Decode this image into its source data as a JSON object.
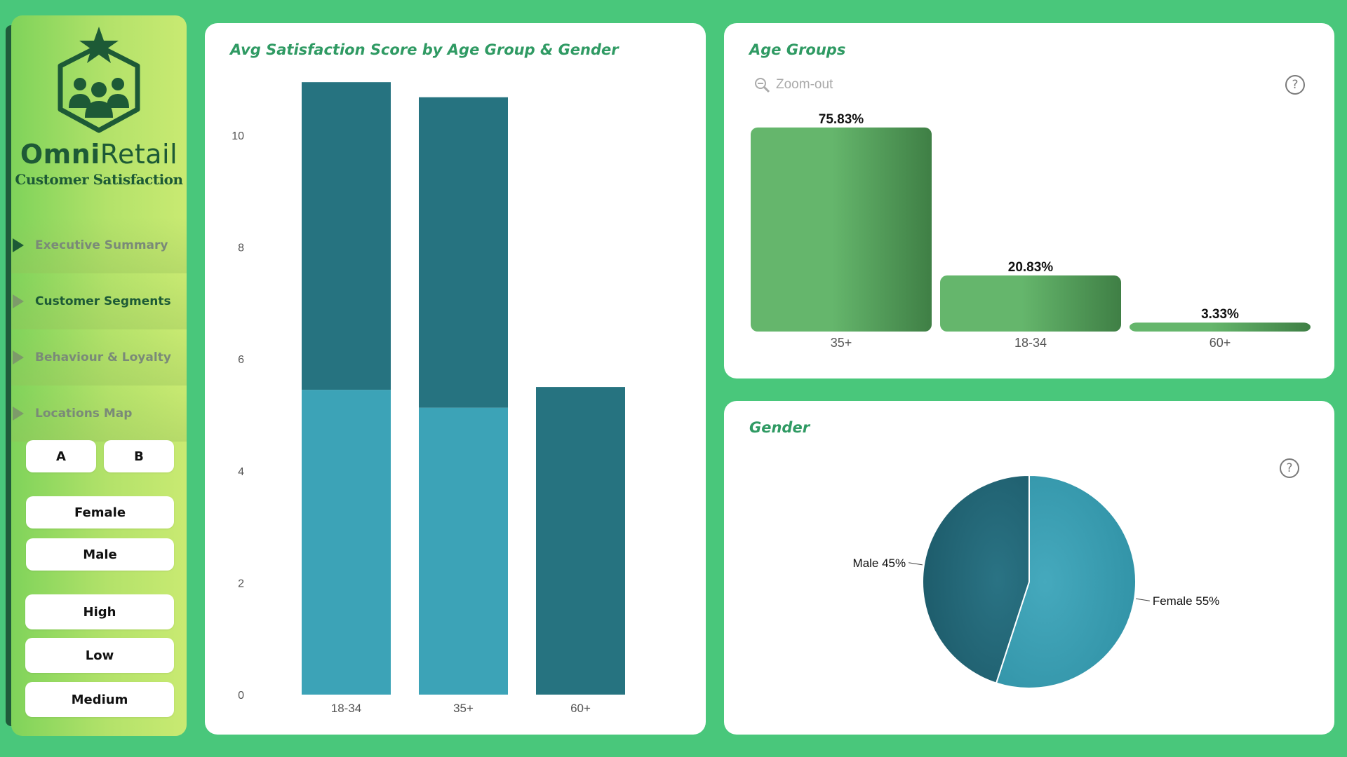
{
  "brand": {
    "name_bold": "Omni",
    "name_light": "Retail",
    "subtitle": "Customer Satisfaction"
  },
  "nav": [
    {
      "label": "Executive Summary"
    },
    {
      "label": "Customer Segments"
    },
    {
      "label": "Behaviour & Loyalty"
    },
    {
      "label": "Locations Map"
    }
  ],
  "slicers": {
    "group": [
      "A",
      "B"
    ],
    "gender": [
      "Female",
      "Male"
    ],
    "level": [
      "High",
      "Low",
      "Medium"
    ]
  },
  "cards": {
    "satisfaction_title": "Avg Satisfaction Score by Age Group & Gender",
    "age_title": "Age Groups",
    "gender_title": "Gender",
    "zoom_label": "Zoom-out",
    "help_glyph": "?"
  },
  "colors": {
    "background": "#49c77b",
    "teal_dark": "#267380",
    "teal_light": "#3ca3b7",
    "green_dark": "#3f7f45",
    "green_light": "#65b66c",
    "title_green": "#2f9a63"
  },
  "chart_data": [
    {
      "type": "bar",
      "stacked": true,
      "title": "Avg Satisfaction Score by Age Group & Gender",
      "categories": [
        "18-34",
        "35+",
        "60+"
      ],
      "series": [
        {
          "values": [
            5.45,
            5.13,
            0
          ]
        },
        {
          "values": [
            5.5,
            5.55,
            5.5
          ]
        }
      ],
      "ylim": [
        0,
        11
      ],
      "yticks": [
        0,
        2,
        4,
        6,
        8,
        10
      ]
    },
    {
      "type": "bar",
      "title": "Age Groups",
      "categories": [
        "35+",
        "18-34",
        "60+"
      ],
      "values": [
        75.83,
        20.83,
        3.33
      ],
      "labels": [
        "75.83%",
        "20.83%",
        "3.33%"
      ]
    },
    {
      "type": "pie",
      "title": "Gender",
      "labels": [
        "Female",
        "Male"
      ],
      "values": [
        55,
        45
      ],
      "display": [
        "Female 55%",
        "Male 45%"
      ]
    }
  ]
}
